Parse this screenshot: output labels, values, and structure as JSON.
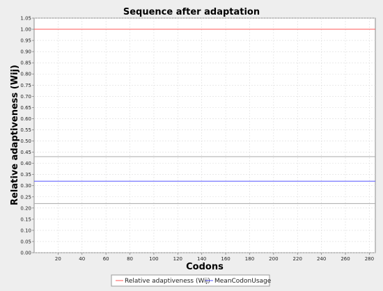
{
  "chart_data": {
    "type": "line",
    "title": "Sequence after adaptation",
    "xlabel": "Codons",
    "ylabel": "Relative adaptiveness (Wij)",
    "xlim": [
      0,
      285
    ],
    "ylim": [
      0,
      1.05
    ],
    "x_ticks": [
      20,
      40,
      60,
      80,
      100,
      120,
      140,
      160,
      180,
      200,
      220,
      240,
      260,
      280
    ],
    "y_ticks": [
      0.0,
      0.05,
      0.1,
      0.15,
      0.2,
      0.25,
      0.3,
      0.35,
      0.4,
      0.45,
      0.5,
      0.55,
      0.6,
      0.65,
      0.7,
      0.75,
      0.8,
      0.85,
      0.9,
      0.95,
      1.0,
      1.05
    ],
    "grid": true,
    "legend_position": "bottom-center",
    "series": [
      {
        "name": "Relative adaptiveness (Wij)",
        "color": "#ff5555",
        "x": [
          0,
          285
        ],
        "y": [
          1.0,
          1.0
        ]
      },
      {
        "name": "MeanCodonUsage",
        "color": "#5555ff",
        "x": [
          0,
          285
        ],
        "y": [
          0.32,
          0.32
        ]
      }
    ],
    "reference_lines": [
      {
        "y": 0.43,
        "color": "#aaaaaa"
      },
      {
        "y": 0.22,
        "color": "#aaaaaa"
      }
    ]
  }
}
